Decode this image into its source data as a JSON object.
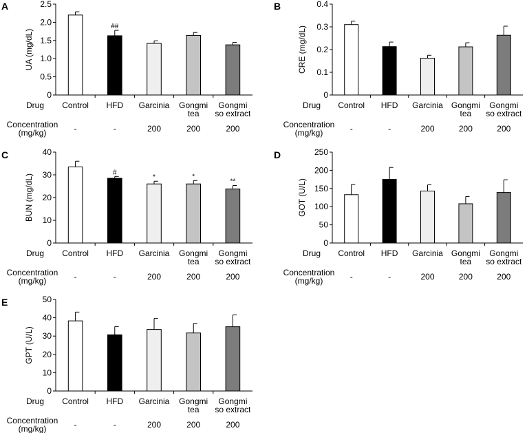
{
  "row_labels": {
    "drug": "Drug",
    "concentration_line1": "Concentration",
    "concentration_line2": "(mg/kg)"
  },
  "groups": [
    {
      "label_lines": [
        "Control"
      ],
      "concentration": "-",
      "fill": "#ffffff"
    },
    {
      "label_lines": [
        "HFD"
      ],
      "concentration": "-",
      "fill": "#000000"
    },
    {
      "label_lines": [
        "Garcinia"
      ],
      "concentration": "200",
      "fill": "#efefef"
    },
    {
      "label_lines": [
        "Gongmi",
        "tea"
      ],
      "concentration": "200",
      "fill": "#c4c4c4"
    },
    {
      "label_lines": [
        "Gongmi",
        "so extract"
      ],
      "concentration": "200",
      "fill": "#7c7c7c"
    }
  ],
  "chart_data": [
    {
      "panel": "A",
      "type": "bar",
      "ylabel": "UA (mg/dL)",
      "ylim": [
        0,
        2.5
      ],
      "yticks": [
        "0",
        "0.5",
        "1.0",
        "1.5",
        "2.0",
        "2.5"
      ],
      "categories": [
        "Control",
        "HFD",
        "Garcinia",
        "Gongmi tea",
        "Gongmi so extract"
      ],
      "values": [
        2.2,
        1.63,
        1.42,
        1.64,
        1.38
      ],
      "errors": [
        0.09,
        0.15,
        0.07,
        0.08,
        0.07
      ],
      "annotations": [
        "",
        "##",
        "",
        "",
        ""
      ]
    },
    {
      "panel": "B",
      "type": "bar",
      "ylabel": "CRE (mg/dL)",
      "ylim": [
        0,
        0.4
      ],
      "yticks": [
        "0",
        "0.1",
        "0.2",
        "0.3",
        "0.4"
      ],
      "categories": [
        "Control",
        "HFD",
        "Garcinia",
        "Gongmi tea",
        "Gongmi so extract"
      ],
      "values": [
        0.31,
        0.213,
        0.162,
        0.212,
        0.263
      ],
      "errors": [
        0.015,
        0.02,
        0.013,
        0.018,
        0.04
      ],
      "annotations": [
        "",
        "",
        "",
        "",
        ""
      ]
    },
    {
      "panel": "C",
      "type": "bar",
      "ylabel": "BUN (mg/dL)",
      "ylim": [
        0,
        40
      ],
      "yticks": [
        "0",
        "10",
        "20",
        "30",
        "40"
      ],
      "categories": [
        "Control",
        "HFD",
        "Garcinia",
        "Gongmi tea",
        "Gongmi so extract"
      ],
      "values": [
        33.5,
        28.5,
        26,
        26,
        23.8
      ],
      "errors": [
        2.5,
        0.8,
        1.2,
        1.5,
        1.5
      ],
      "annotations": [
        "",
        "#",
        "*",
        "*",
        "**"
      ]
    },
    {
      "panel": "D",
      "type": "bar",
      "ylabel": "GOT (U/L)",
      "ylim": [
        0,
        250
      ],
      "yticks": [
        "0",
        "50",
        "100",
        "150",
        "200",
        "250"
      ],
      "categories": [
        "Control",
        "HFD",
        "Garcinia",
        "Gongmi tea",
        "Gongmi so extract"
      ],
      "values": [
        133,
        175,
        143,
        108,
        139
      ],
      "errors": [
        28,
        33,
        17,
        20,
        35
      ],
      "annotations": [
        "",
        "",
        "",
        "",
        ""
      ]
    },
    {
      "panel": "E",
      "type": "bar",
      "ylabel": "GPT (U/L)",
      "ylim": [
        0,
        50
      ],
      "yticks": [
        "0",
        "10",
        "20",
        "30",
        "40",
        "50"
      ],
      "categories": [
        "Control",
        "HFD",
        "Garcinia",
        "Gongmi tea",
        "Gongmi so extract"
      ],
      "values": [
        38.3,
        30.7,
        33.6,
        31.7,
        35.1
      ],
      "errors": [
        4.8,
        4.5,
        6.0,
        5.2,
        6.5
      ],
      "annotations": [
        "",
        "",
        "",
        "",
        ""
      ]
    }
  ]
}
